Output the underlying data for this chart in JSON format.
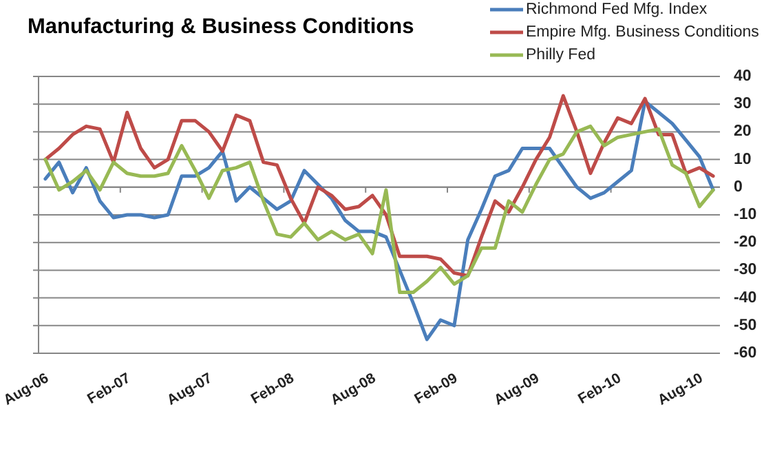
{
  "chart_data": {
    "type": "line",
    "title": "Manufacturing & Business Conditions",
    "categories": [
      "Aug-06",
      null,
      null,
      null,
      null,
      null,
      "Feb-07",
      null,
      null,
      null,
      null,
      null,
      "Aug-07",
      null,
      null,
      null,
      null,
      null,
      "Feb-08",
      null,
      null,
      null,
      null,
      null,
      "Aug-08",
      null,
      null,
      null,
      null,
      null,
      "Feb-09",
      null,
      null,
      null,
      null,
      null,
      "Aug-09",
      null,
      null,
      null,
      null,
      null,
      "Feb-10",
      null,
      null,
      null,
      null,
      null,
      "Aug-10",
      null
    ],
    "series": [
      {
        "name": "Richmond Fed Mfg. Index",
        "color": "#4a7ebb",
        "values": [
          3,
          9,
          -2,
          7,
          -5,
          -11,
          -10,
          -10,
          -11,
          -10,
          4,
          4,
          7,
          13,
          -5,
          0,
          -4,
          -8,
          -5,
          6,
          1,
          -4,
          -12,
          -16,
          -16,
          -18,
          -30,
          -42,
          -55,
          -48,
          -50,
          -19,
          -8,
          4,
          6,
          14,
          14,
          14,
          7,
          0,
          -4,
          -2,
          2,
          6,
          31,
          27,
          23,
          17,
          11,
          -1
        ]
      },
      {
        "name": "Empire Mfg. Business Conditions",
        "color": "#be4b48",
        "values": [
          10,
          14,
          19,
          22,
          21,
          9,
          27,
          14,
          7,
          10,
          24,
          24,
          20,
          13,
          26,
          24,
          9,
          8,
          -4,
          -13,
          0,
          -3,
          -8,
          -7,
          -3,
          -10,
          -25,
          -25,
          -25,
          -26,
          -31,
          -32,
          -18,
          -5,
          -9,
          0,
          10,
          18,
          33,
          20,
          5,
          16,
          25,
          23,
          32,
          19,
          19,
          5,
          7,
          4
        ]
      },
      {
        "name": "Philly Fed",
        "color": "#98b954",
        "values": [
          10,
          -1,
          2,
          6,
          -1,
          9,
          5,
          4,
          4,
          5,
          15,
          6,
          -4,
          6,
          7,
          9,
          -5,
          -17,
          -18,
          -13,
          -19,
          -16,
          -19,
          -17,
          -24,
          -1,
          -38,
          -38,
          -34,
          -29,
          -35,
          -32,
          -22,
          -22,
          -5,
          -9,
          1,
          10,
          12,
          20,
          22,
          15,
          18,
          19,
          20,
          21,
          8,
          5,
          -7,
          -1
        ]
      }
    ],
    "ylim": [
      -60,
      40
    ],
    "yticks": [
      -60,
      -50,
      -40,
      -30,
      -20,
      -10,
      0,
      10,
      20,
      30,
      40
    ],
    "grid": "y",
    "legend": "top right"
  }
}
